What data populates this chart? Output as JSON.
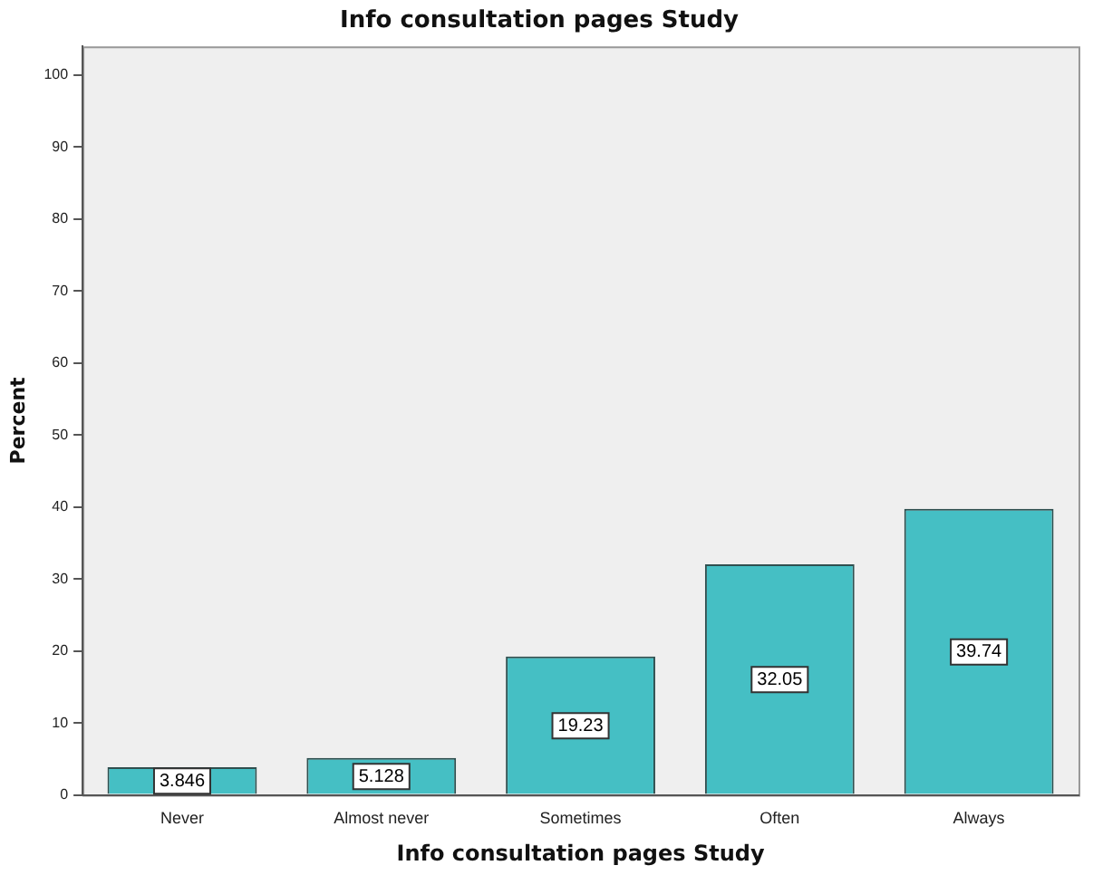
{
  "chart_data": {
    "type": "bar",
    "title": "Info consultation pages Study",
    "xlabel": "Info consultation pages Study",
    "ylabel": "Percent",
    "categories": [
      "Never",
      "Almost never",
      "Sometimes",
      "Often",
      "Always"
    ],
    "values": [
      3.846,
      5.128,
      19.23,
      32.05,
      39.74
    ],
    "color": "#45bfc4",
    "ylim": [
      0,
      104
    ],
    "yticks": [
      0,
      10,
      20,
      30,
      40,
      50,
      60,
      70,
      80,
      90,
      100
    ],
    "grid": false,
    "legend": false,
    "data_labels": true
  }
}
